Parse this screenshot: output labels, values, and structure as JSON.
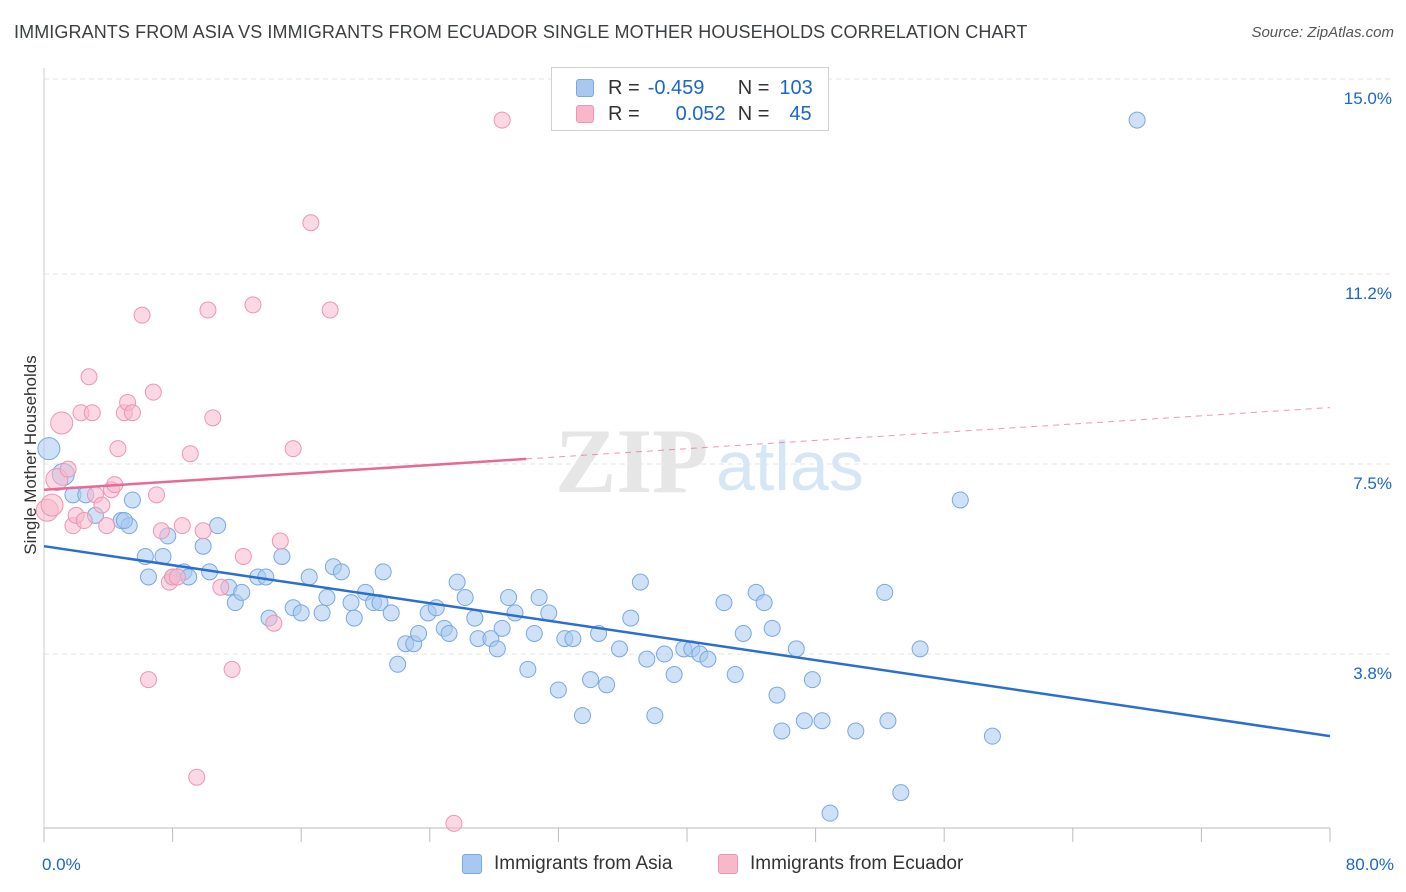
{
  "title": "IMMIGRANTS FROM ASIA VS IMMIGRANTS FROM ECUADOR SINGLE MOTHER HOUSEHOLDS CORRELATION CHART",
  "source": "Source: ZipAtlas.com",
  "colors": {
    "asia_fill": "#a8c8f0",
    "asia_stroke": "#7aa8e0",
    "asia_line": "#2a6fd0",
    "ecuador_fill": "#f7b8cc",
    "ecuador_stroke": "#ee95b2",
    "ecuador_line": "#e56b96",
    "tick_label": "#1a66c9",
    "grid": "#e3e3e3"
  },
  "legend": {
    "asia": {
      "r_label": "R =",
      "r_value": "-0.459",
      "n_label": "N =",
      "n_value": "103"
    },
    "ecuador": {
      "r_label": "R =",
      "r_value": "0.052",
      "n_label": "N =",
      "n_value": "45"
    }
  },
  "chart_data": {
    "type": "scatter",
    "title": "IMMIGRANTS FROM ASIA VS IMMIGRANTS FROM ECUADOR SINGLE MOTHER HOUSEHOLDS CORRELATION CHART",
    "xlabel": "",
    "ylabel": "Single Mother Households",
    "xlim": [
      0,
      80
    ],
    "ylim": [
      0,
      15.5
    ],
    "x_tick_labels": [
      "0.0%",
      "80.0%"
    ],
    "y_ticks": [
      3.8,
      7.5,
      11.2,
      15.0
    ],
    "y_tick_labels": [
      "3.8%",
      "7.5%",
      "11.2%",
      "15.0%"
    ],
    "grid": true,
    "legend_position": "bottom",
    "watermark": "ZIPatlas",
    "series": [
      {
        "name": "Immigrants from Asia",
        "trend": {
          "x": [
            0,
            80
          ],
          "y": [
            5.9,
            2.2
          ],
          "dashed_from": null
        },
        "points": [
          [
            0.3,
            7.8
          ],
          [
            1.2,
            7.3
          ],
          [
            1.8,
            6.9
          ],
          [
            2.6,
            6.9
          ],
          [
            3.2,
            6.5
          ],
          [
            4.8,
            6.4
          ],
          [
            5.3,
            6.3
          ],
          [
            5.5,
            6.8
          ],
          [
            5.0,
            6.4
          ],
          [
            6.3,
            5.7
          ],
          [
            6.5,
            5.3
          ],
          [
            7.4,
            5.7
          ],
          [
            7.7,
            6.1
          ],
          [
            8.0,
            5.3
          ],
          [
            8.7,
            5.4
          ],
          [
            9.0,
            5.3
          ],
          [
            9.9,
            5.9
          ],
          [
            10.3,
            5.4
          ],
          [
            10.8,
            6.3
          ],
          [
            11.5,
            5.1
          ],
          [
            11.9,
            4.8
          ],
          [
            12.3,
            5.0
          ],
          [
            13.3,
            5.3
          ],
          [
            13.8,
            5.3
          ],
          [
            14.0,
            4.5
          ],
          [
            14.8,
            5.7
          ],
          [
            15.5,
            4.7
          ],
          [
            16.0,
            4.6
          ],
          [
            16.5,
            5.3
          ],
          [
            17.3,
            4.6
          ],
          [
            17.6,
            4.9
          ],
          [
            18.0,
            5.5
          ],
          [
            18.5,
            5.4
          ],
          [
            19.1,
            4.8
          ],
          [
            19.3,
            4.5
          ],
          [
            20.0,
            5.0
          ],
          [
            20.5,
            4.8
          ],
          [
            20.9,
            4.8
          ],
          [
            21.1,
            5.4
          ],
          [
            21.6,
            4.6
          ],
          [
            22.0,
            3.6
          ],
          [
            22.5,
            4.0
          ],
          [
            23.0,
            4.0
          ],
          [
            23.3,
            4.2
          ],
          [
            23.9,
            4.6
          ],
          [
            24.4,
            4.7
          ],
          [
            24.9,
            4.3
          ],
          [
            25.2,
            4.2
          ],
          [
            25.7,
            5.2
          ],
          [
            26.2,
            4.9
          ],
          [
            26.8,
            4.5
          ],
          [
            27.0,
            4.1
          ],
          [
            27.8,
            4.1
          ],
          [
            28.2,
            3.9
          ],
          [
            28.5,
            4.3
          ],
          [
            28.9,
            4.9
          ],
          [
            29.3,
            4.6
          ],
          [
            30.1,
            3.5
          ],
          [
            30.5,
            4.2
          ],
          [
            30.8,
            4.9
          ],
          [
            31.4,
            4.6
          ],
          [
            32.0,
            3.1
          ],
          [
            32.4,
            4.1
          ],
          [
            32.9,
            4.1
          ],
          [
            33.5,
            2.6
          ],
          [
            34.0,
            3.3
          ],
          [
            34.5,
            4.2
          ],
          [
            35.0,
            3.2
          ],
          [
            35.8,
            3.9
          ],
          [
            36.5,
            4.5
          ],
          [
            37.1,
            5.2
          ],
          [
            37.5,
            3.7
          ],
          [
            38.0,
            2.6
          ],
          [
            38.6,
            3.8
          ],
          [
            39.2,
            3.4
          ],
          [
            39.8,
            3.9
          ],
          [
            40.3,
            3.9
          ],
          [
            40.8,
            3.8
          ],
          [
            41.3,
            3.7
          ],
          [
            42.3,
            4.8
          ],
          [
            43.0,
            3.4
          ],
          [
            43.5,
            4.2
          ],
          [
            44.3,
            5.0
          ],
          [
            44.8,
            4.8
          ],
          [
            45.3,
            4.3
          ],
          [
            45.6,
            3.0
          ],
          [
            45.9,
            2.3
          ],
          [
            46.8,
            3.9
          ],
          [
            47.3,
            2.5
          ],
          [
            47.8,
            3.3
          ],
          [
            48.4,
            2.5
          ],
          [
            48.9,
            0.7
          ],
          [
            50.5,
            2.3
          ],
          [
            52.3,
            5.0
          ],
          [
            52.5,
            2.5
          ],
          [
            53.3,
            1.1
          ],
          [
            54.5,
            3.9
          ],
          [
            57.0,
            6.8
          ],
          [
            59.0,
            2.2
          ],
          [
            68.0,
            14.2
          ]
        ]
      },
      {
        "name": "Immigrants from Ecuador",
        "trend": {
          "x": [
            0,
            80
          ],
          "y": [
            7.0,
            8.6
          ],
          "dashed_from": 30
        },
        "points": [
          [
            0.2,
            6.6
          ],
          [
            0.5,
            6.7
          ],
          [
            0.8,
            7.2
          ],
          [
            1.1,
            8.3
          ],
          [
            1.5,
            7.4
          ],
          [
            1.8,
            6.3
          ],
          [
            2.0,
            6.5
          ],
          [
            2.3,
            8.5
          ],
          [
            2.5,
            6.4
          ],
          [
            2.8,
            9.2
          ],
          [
            3.0,
            8.5
          ],
          [
            3.2,
            6.9
          ],
          [
            3.6,
            6.7
          ],
          [
            3.9,
            6.3
          ],
          [
            4.2,
            7.0
          ],
          [
            4.4,
            7.1
          ],
          [
            4.6,
            7.8
          ],
          [
            5.0,
            8.5
          ],
          [
            5.2,
            8.7
          ],
          [
            5.5,
            8.5
          ],
          [
            6.1,
            10.4
          ],
          [
            6.5,
            3.3
          ],
          [
            6.8,
            8.9
          ],
          [
            7.0,
            6.9
          ],
          [
            7.3,
            6.2
          ],
          [
            7.8,
            5.2
          ],
          [
            8.0,
            5.3
          ],
          [
            8.3,
            5.3
          ],
          [
            8.6,
            6.3
          ],
          [
            9.1,
            7.7
          ],
          [
            9.5,
            1.4
          ],
          [
            9.9,
            6.2
          ],
          [
            10.2,
            10.5
          ],
          [
            10.5,
            8.4
          ],
          [
            11.0,
            5.1
          ],
          [
            11.7,
            3.5
          ],
          [
            12.4,
            5.7
          ],
          [
            13.0,
            10.6
          ],
          [
            14.3,
            4.4
          ],
          [
            14.7,
            6.0
          ],
          [
            15.5,
            7.8
          ],
          [
            16.6,
            12.2
          ],
          [
            17.8,
            10.5
          ],
          [
            25.5,
            0.5
          ],
          [
            28.5,
            14.2
          ]
        ]
      }
    ]
  },
  "bottom_legend": [
    "Immigrants from Asia",
    "Immigrants from Ecuador"
  ]
}
